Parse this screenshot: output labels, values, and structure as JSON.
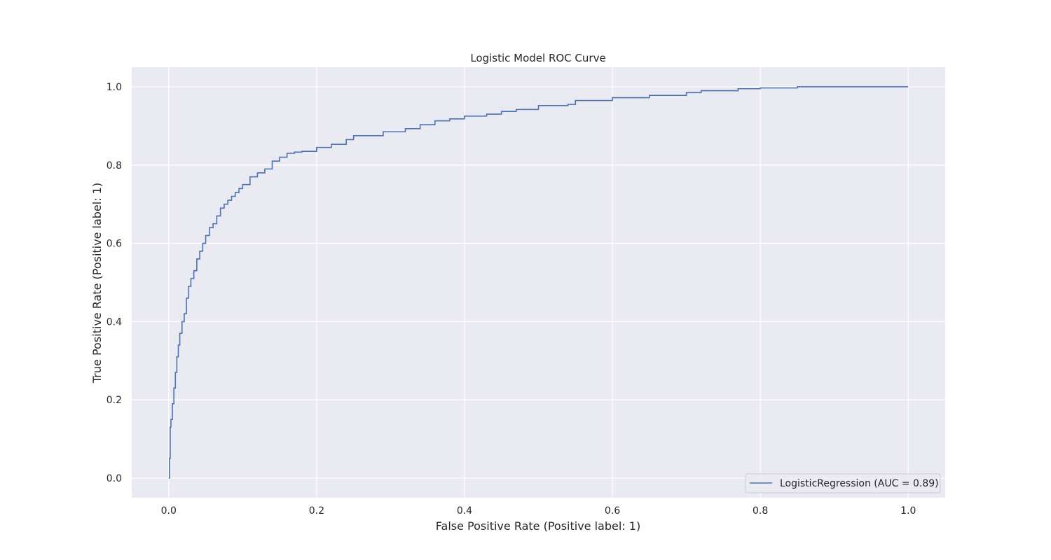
{
  "chart_data": {
    "type": "line",
    "title": "Logistic Model ROC Curve",
    "xlabel": "False Positive Rate (Positive label: 1)",
    "ylabel": "True Positive Rate (Positive label: 1)",
    "xlim": [
      -0.05,
      1.05
    ],
    "ylim": [
      -0.05,
      1.05
    ],
    "xticks": [
      0.0,
      0.2,
      0.4,
      0.6,
      0.8,
      1.0
    ],
    "yticks": [
      0.0,
      0.2,
      0.4,
      0.6,
      0.8,
      1.0
    ],
    "xtick_labels": [
      "0.0",
      "0.2",
      "0.4",
      "0.6",
      "0.8",
      "1.0"
    ],
    "ytick_labels": [
      "0.0",
      "0.2",
      "0.4",
      "0.6",
      "0.8",
      "1.0"
    ],
    "grid": true,
    "legend_position": "lower-right",
    "colors": {
      "background": "#eaeaf2",
      "grid": "#ffffff",
      "series": "#4c72b0",
      "text": "#262626"
    },
    "series": [
      {
        "name": "LogisticRegression (AUC = 0.89)",
        "x": [
          0.0,
          0.001,
          0.002,
          0.003,
          0.005,
          0.007,
          0.009,
          0.011,
          0.013,
          0.015,
          0.018,
          0.021,
          0.024,
          0.027,
          0.03,
          0.034,
          0.038,
          0.042,
          0.046,
          0.05,
          0.055,
          0.06,
          0.065,
          0.07,
          0.075,
          0.08,
          0.085,
          0.09,
          0.095,
          0.1,
          0.11,
          0.12,
          0.13,
          0.14,
          0.15,
          0.16,
          0.17,
          0.18,
          0.2,
          0.22,
          0.24,
          0.25,
          0.27,
          0.29,
          0.3,
          0.32,
          0.34,
          0.36,
          0.38,
          0.4,
          0.43,
          0.45,
          0.47,
          0.5,
          0.54,
          0.55,
          0.6,
          0.65,
          0.7,
          0.72,
          0.75,
          0.77,
          0.8,
          0.85,
          0.9,
          0.95,
          1.0
        ],
        "y": [
          0.0,
          0.05,
          0.13,
          0.15,
          0.19,
          0.23,
          0.27,
          0.31,
          0.34,
          0.37,
          0.4,
          0.42,
          0.46,
          0.49,
          0.51,
          0.53,
          0.56,
          0.58,
          0.6,
          0.62,
          0.64,
          0.65,
          0.67,
          0.69,
          0.7,
          0.71,
          0.72,
          0.73,
          0.74,
          0.75,
          0.77,
          0.78,
          0.79,
          0.81,
          0.82,
          0.83,
          0.833,
          0.835,
          0.845,
          0.853,
          0.865,
          0.875,
          0.875,
          0.885,
          0.885,
          0.893,
          0.903,
          0.913,
          0.918,
          0.925,
          0.93,
          0.937,
          0.942,
          0.952,
          0.955,
          0.965,
          0.972,
          0.978,
          0.985,
          0.99,
          0.99,
          0.995,
          0.997,
          1.0,
          1.0,
          1.0,
          1.0
        ]
      }
    ]
  }
}
